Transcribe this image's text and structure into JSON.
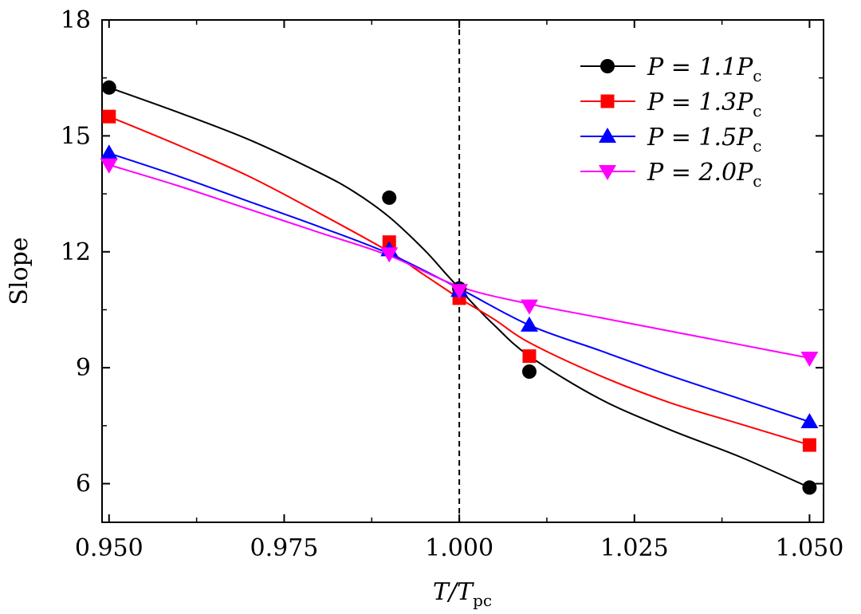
{
  "chart_data": {
    "type": "line",
    "xlabel": {
      "main": "T/T",
      "sub": "pc"
    },
    "ylabel": "Slope",
    "xlim": [
      0.949,
      1.052
    ],
    "ylim": [
      5,
      18
    ],
    "x_ticks": [
      0.95,
      0.975,
      1.0,
      1.025,
      1.05
    ],
    "x_tick_labels": [
      "0.950",
      "0.975",
      "1.000",
      "1.025",
      "1.050"
    ],
    "y_ticks": [
      6,
      9,
      12,
      15,
      18
    ],
    "y_tick_labels": [
      "6",
      "9",
      "12",
      "15",
      "18"
    ],
    "reference_line": {
      "x": 1.0,
      "style": "dashed"
    },
    "legend_position": "top-right",
    "series": [
      {
        "name": "P = 1.1P",
        "name_sub": "c",
        "color": "#000000",
        "marker": "circle",
        "x": [
          0.95,
          0.99,
          1.0,
          1.01,
          1.05
        ],
        "y": [
          16.25,
          13.4,
          11.05,
          8.9,
          5.9
        ],
        "curve_x": [
          0.95,
          0.96,
          0.97,
          0.98,
          0.985,
          0.99,
          0.995,
          0.998,
          1.0,
          1.002,
          1.005,
          1.01,
          1.02,
          1.03,
          1.04,
          1.05
        ],
        "curve_y": [
          16.25,
          15.6,
          14.9,
          14.05,
          13.55,
          12.9,
          12.05,
          11.45,
          11.05,
          10.65,
          10.1,
          9.3,
          8.2,
          7.4,
          6.7,
          5.9
        ]
      },
      {
        "name": "P = 1.3P",
        "name_sub": "c",
        "color": "#ff0000",
        "marker": "square",
        "x": [
          0.95,
          0.99,
          1.0,
          1.01,
          1.05
        ],
        "y": [
          15.5,
          12.25,
          10.8,
          9.3,
          7.0
        ],
        "curve_x": [
          0.95,
          0.96,
          0.97,
          0.98,
          0.99,
          0.995,
          1.0,
          1.005,
          1.01,
          1.02,
          1.03,
          1.04,
          1.05
        ],
        "curve_y": [
          15.5,
          14.75,
          13.95,
          13.0,
          12.0,
          11.4,
          10.8,
          10.25,
          9.65,
          8.8,
          8.1,
          7.55,
          7.0
        ]
      },
      {
        "name": "P = 1.5P",
        "name_sub": "c",
        "color": "#0000ff",
        "marker": "triangle-up",
        "x": [
          0.95,
          0.99,
          1.0,
          1.01,
          1.05
        ],
        "y": [
          14.55,
          12.05,
          11.0,
          10.1,
          7.6
        ],
        "curve_x": [
          0.95,
          0.96,
          0.97,
          0.98,
          0.99,
          1.0,
          1.01,
          1.02,
          1.03,
          1.04,
          1.05
        ],
        "curve_y": [
          14.55,
          13.95,
          13.3,
          12.65,
          11.95,
          11.05,
          10.1,
          9.45,
          8.8,
          8.2,
          7.6
        ]
      },
      {
        "name": "P = 2.0P",
        "name_sub": "c",
        "color": "#ff00ff",
        "marker": "triangle-down",
        "x": [
          0.95,
          0.99,
          1.0,
          1.01,
          1.05
        ],
        "y": [
          14.25,
          11.95,
          11.0,
          10.6,
          9.25
        ],
        "curve_x": [
          0.95,
          0.96,
          0.97,
          0.98,
          0.99,
          1.0,
          1.01,
          1.02,
          1.03,
          1.04,
          1.05
        ],
        "curve_y": [
          14.25,
          13.7,
          13.1,
          12.5,
          11.9,
          11.1,
          10.65,
          10.3,
          9.95,
          9.6,
          9.25
        ]
      }
    ]
  }
}
